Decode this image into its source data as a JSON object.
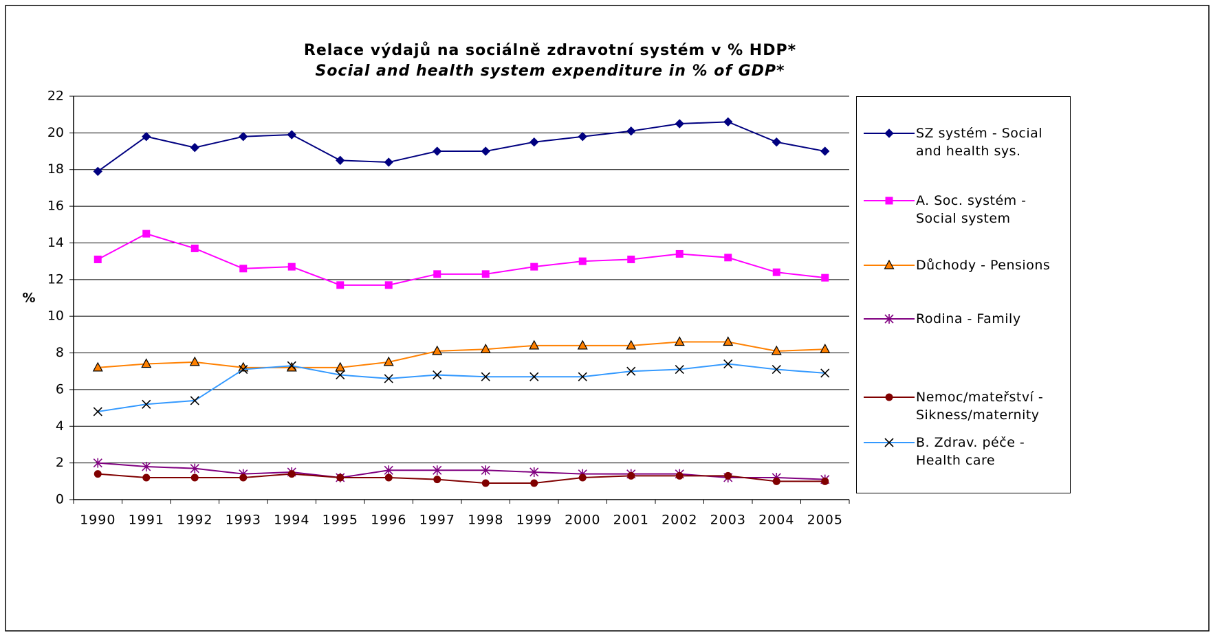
{
  "chart_data": {
    "type": "line",
    "title": "Relace výdajů na sociálně zdravotní systém v % HDP*",
    "subtitle": "Social and health system expenditure in % of GDP*",
    "y_label": "%",
    "categories": [
      "1990",
      "1991",
      "1992",
      "1993",
      "1994",
      "1995",
      "1996",
      "1997",
      "1998",
      "1999",
      "2000",
      "2001",
      "2002",
      "2003",
      "2004",
      "2005"
    ],
    "ylim": [
      0,
      22
    ],
    "yticks": [
      0,
      2,
      4,
      6,
      8,
      10,
      12,
      14,
      16,
      18,
      20,
      22
    ],
    "grid": true,
    "legend": "right",
    "series": [
      {
        "name": "SZ systém - Social and health sys.",
        "color": "#000080",
        "marker": "diamond",
        "values": [
          17.9,
          19.8,
          19.2,
          19.8,
          19.9,
          18.5,
          18.4,
          19.0,
          19.0,
          19.5,
          19.8,
          20.1,
          20.5,
          20.6,
          19.5,
          19.0
        ]
      },
      {
        "name": "A. Soc. systém - Social system",
        "color": "#ff00ff",
        "marker": "square",
        "values": [
          13.1,
          14.5,
          13.7,
          12.6,
          12.7,
          11.7,
          11.7,
          12.3,
          12.3,
          12.7,
          13.0,
          13.1,
          13.4,
          13.2,
          12.4,
          12.1
        ]
      },
      {
        "name": "Důchody - Pensions",
        "color": "#ff8000",
        "marker": "triangle",
        "values": [
          7.2,
          7.4,
          7.5,
          7.2,
          7.2,
          7.2,
          7.5,
          8.1,
          8.2,
          8.4,
          8.4,
          8.4,
          8.6,
          8.6,
          8.1,
          8.2
        ]
      },
      {
        "name": "Rodina - Family",
        "color": "#800080",
        "marker": "star",
        "values": [
          2.0,
          1.8,
          1.7,
          1.4,
          1.5,
          1.2,
          1.6,
          1.6,
          1.6,
          1.5,
          1.4,
          1.4,
          1.4,
          1.2,
          1.2,
          1.1
        ]
      },
      {
        "name": "Nemoc/mateřství - Sikness/maternity",
        "color": "#800000",
        "marker": "circle",
        "values": [
          1.4,
          1.2,
          1.2,
          1.2,
          1.4,
          1.2,
          1.2,
          1.1,
          0.9,
          0.9,
          1.2,
          1.3,
          1.3,
          1.3,
          1.0,
          1.0
        ]
      },
      {
        "name": "B. Zdrav. péče - Health care",
        "color": "#3399ff",
        "marker": "x",
        "values": [
          4.8,
          5.2,
          5.4,
          7.1,
          7.3,
          6.8,
          6.6,
          6.8,
          6.7,
          6.7,
          6.7,
          7.0,
          7.1,
          7.4,
          7.1,
          6.9
        ]
      }
    ]
  }
}
